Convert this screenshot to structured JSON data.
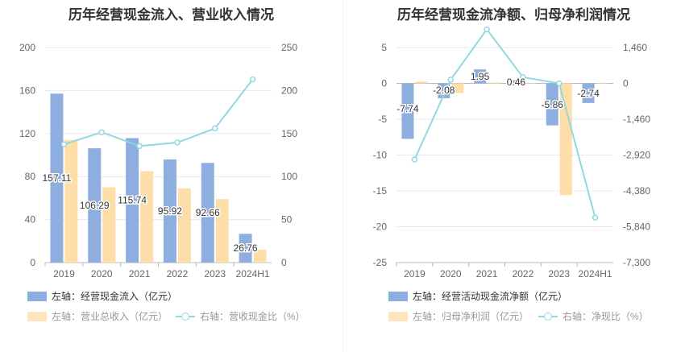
{
  "chart_data": [
    {
      "type": "bar",
      "title": "历年经营现金流入、营业收入情况",
      "categories": [
        "2019",
        "2020",
        "2021",
        "2022",
        "2023",
        "2024H1"
      ],
      "left_ylim": [
        0,
        200
      ],
      "left_ticks": [
        "0",
        "40",
        "80",
        "120",
        "160",
        "200"
      ],
      "right_ylim": [
        0,
        250
      ],
      "right_ticks": [
        "0",
        "50",
        "100",
        "150",
        "200",
        "250"
      ],
      "series": [
        {
          "name": "左轴：经营现金流入（亿元）",
          "type": "bar",
          "axis": "left",
          "color": "#8eaedf",
          "values": [
            157.11,
            106.29,
            115.74,
            95.92,
            92.66,
            26.76
          ],
          "labels": [
            "157.11",
            "106.29",
            "115.74",
            "95.92",
            "92.66",
            "26.76"
          ]
        },
        {
          "name": "左轴：营业总收入（亿元）",
          "type": "bar",
          "axis": "left",
          "color": "#fddea8",
          "values": [
            114,
            70,
            85,
            69,
            59,
            12
          ]
        },
        {
          "name": "右轴：营收现金比（%）",
          "type": "line",
          "axis": "right",
          "color": "#91d9df",
          "values": [
            137.5,
            151.5,
            135.5,
            139.5,
            156,
            213
          ]
        }
      ],
      "grid": true
    },
    {
      "type": "bar",
      "title": "历年经营现金流净额、归母净利润情况",
      "categories": [
        "2019",
        "2020",
        "2021",
        "2022",
        "2023",
        "2024H1"
      ],
      "left_ylim": [
        -25,
        5
      ],
      "left_ticks": [
        "5",
        "0",
        "-5",
        "-10",
        "-15",
        "-20",
        "-25"
      ],
      "right_ylim": [
        -7300,
        1460
      ],
      "right_ticks": [
        "1,460",
        "0",
        "-1,460",
        "-2,920",
        "-4,380",
        "-5,840",
        "-7,300"
      ],
      "series": [
        {
          "name": "左轴：经营活动现金流净额（亿元）",
          "type": "bar",
          "axis": "left",
          "color": "#8eaedf",
          "values": [
            -7.74,
            -2.08,
            1.95,
            0.46,
            -5.86,
            -2.74
          ],
          "labels": [
            "-7.74",
            "-2.08",
            "1.95",
            "0.46",
            "-5.86",
            "-2.74"
          ]
        },
        {
          "name": "左轴：归母净利润（亿元）",
          "type": "bar",
          "axis": "left",
          "color": "#fddea8",
          "values": [
            0.25,
            -1.35,
            0.1,
            0.05,
            -15.6,
            0.05
          ]
        },
        {
          "name": "右轴：净现比（%）",
          "type": "line",
          "axis": "right",
          "color": "#91d9df",
          "values": [
            -3100,
            150,
            2200,
            250,
            0,
            -5470
          ]
        }
      ],
      "grid": true
    }
  ]
}
